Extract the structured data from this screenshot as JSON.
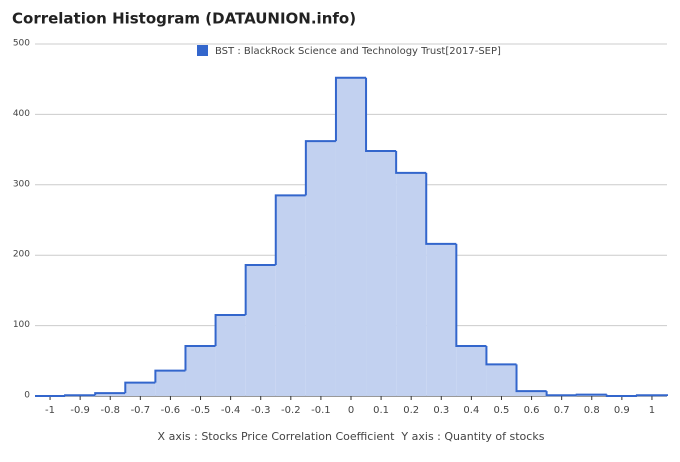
{
  "chart_data": {
    "type": "histogram",
    "title": "Correlation Histogram (DATAUNION.info)",
    "x_label": "X axis : Stocks Price Correlation Coefficient  Y axis : Quantity of stocks",
    "bins": [
      -1.05,
      -0.95,
      -0.85,
      -0.75,
      -0.65,
      -0.55,
      -0.45,
      -0.35,
      -0.25,
      -0.15,
      -0.05,
      0.05,
      0.15,
      0.25,
      0.35,
      0.45,
      0.55,
      0.65,
      0.75,
      0.85,
      0.95,
      1.05
    ],
    "series": [
      {
        "name": "BST : BlackRock Science and Technology Trust[2017-SEP]",
        "color": "#3366cc",
        "fill": "#c2d1f0",
        "values": [
          0,
          1,
          4,
          19,
          36,
          71,
          115,
          186,
          285,
          362,
          452,
          348,
          317,
          216,
          71,
          45,
          7,
          1,
          2,
          0,
          1
        ]
      }
    ],
    "xlim": [
      -1.05,
      1.05
    ],
    "xticks": [
      -1,
      -0.9,
      -0.8,
      -0.7,
      -0.6,
      -0.5,
      -0.4,
      -0.3,
      -0.2,
      -0.1,
      0,
      0.1,
      0.2,
      0.3,
      0.4,
      0.5,
      0.6,
      0.7,
      0.8,
      0.9,
      1
    ],
    "ylim": [
      0,
      500
    ],
    "yticks": [
      0,
      100,
      200,
      300,
      400,
      500
    ],
    "grid": true
  }
}
